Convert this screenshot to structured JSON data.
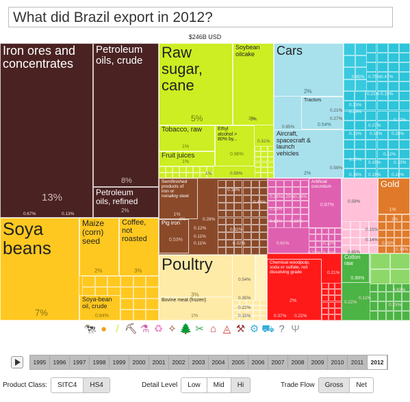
{
  "header": {
    "title": "What did Brazil export in 2012?",
    "total": "$246B USD"
  },
  "tiles": [
    {
      "id": "iron",
      "label": "Iron ores and\nconcentrates",
      "pct": "13%",
      "color": "#4a2222",
      "text": "#ffffff",
      "pctColor": "#cfb9b9",
      "fs": 18,
      "pfs": 15
    },
    {
      "id": "crude",
      "label": "Petroleum\noils, crude",
      "pct": "8%",
      "color": "#4a2222",
      "text": "#ffffff",
      "pctColor": "#cfb9b9",
      "fs": 15,
      "pfs": 11
    },
    {
      "id": "refined",
      "label": "Petroleum\noils, refined",
      "pct": "2%",
      "color": "#4a2222",
      "text": "#ffffff",
      "pctColor": "#cfb9b9",
      "fs": 12,
      "pfs": 8
    },
    {
      "id": "soya",
      "label": "Soya\nbeans",
      "pct": "7%",
      "color": "#ffc820",
      "text": "#222222",
      "pctColor": "#8a6d10",
      "fs": 26,
      "pfs": 13
    },
    {
      "id": "maize",
      "label": "Maize\n(corn)\nseed",
      "pct": "2%",
      "color": "#ffc820",
      "text": "#222222",
      "pctColor": "#8a6d10",
      "fs": 12,
      "pfs": 8
    },
    {
      "id": "coffee",
      "label": "Coffee,\nnot\nroasted",
      "pct": "3%",
      "color": "#ffc820",
      "text": "#222222",
      "pctColor": "#8a6d10",
      "fs": 11,
      "pfs": 8
    },
    {
      "id": "soyoil",
      "label": "Soya-bean\noil, crude",
      "pct": "0.84%",
      "color": "#ffc820",
      "text": "#222222",
      "pctColor": "#8a6d10",
      "fs": 9,
      "pfs": 7
    },
    {
      "id": "sugar",
      "label": "Raw\nsugar,\ncane",
      "pct": "5%",
      "color": "#ccee22",
      "text": "#222222",
      "pctColor": "#6a7d10",
      "fs": 22,
      "pfs": 12
    },
    {
      "id": "oilcake",
      "label": "Soybean\noilcake",
      "pct": "3%",
      "color": "#ccee22",
      "text": "#222222",
      "pctColor": "#6a7d10",
      "fs": 9,
      "pfs": 7
    },
    {
      "id": "tobacco",
      "label": "Tobacco, raw",
      "pct": "1%",
      "color": "#ccee22",
      "text": "#222222",
      "pctColor": "#6a7d10",
      "fs": 10,
      "pfs": 7
    },
    {
      "id": "ethyl",
      "label": "Ethyl\nalcohol >\n80% by...",
      "pct": "0.96%",
      "color": "#ccee22",
      "text": "#222222",
      "pctColor": "#6a7d10",
      "fs": 7,
      "pfs": 7
    },
    {
      "id": "juices",
      "label": "Fruit juices",
      "pct": "1%",
      "color": "#ccee22",
      "text": "#222222",
      "pctColor": "#6a7d10",
      "fs": 10,
      "pfs": 7
    },
    {
      "id": "semifin",
      "label": "Semifinished\nproducts of\niron or\nnonalloy steel",
      "pct": "1%",
      "color": "#8a4a2a",
      "text": "#ffffff",
      "pctColor": "#e6cbbb",
      "fs": 6.5,
      "pfs": 7
    },
    {
      "id": "pigiron",
      "label": "Pig iron",
      "pct": "0.53%",
      "color": "#8a4a2a",
      "text": "#ffffff",
      "pctColor": "#e6cbbb",
      "fs": 8,
      "pfs": 7
    },
    {
      "id": "poultry",
      "label": "Poultry",
      "pct": "3%",
      "color": "#ffeba8",
      "text": "#222222",
      "pctColor": "#8a7a40",
      "fs": 24,
      "pfs": 8
    },
    {
      "id": "bovine",
      "label": "Bovine meat (frozen)",
      "pct": "1%",
      "color": "#ffeba8",
      "text": "#222222",
      "pctColor": "#8a7a40",
      "fs": 7,
      "pfs": 7
    },
    {
      "id": "cars",
      "label": "Cars",
      "pct": "2%",
      "color": "#a8e0ec",
      "text": "#222222",
      "pctColor": "#3d6c78",
      "fs": 18,
      "pfs": 8
    },
    {
      "id": "tractors",
      "label": "Tractors",
      "pct": "0.54%",
      "color": "#a8e0ec",
      "text": "#222222",
      "pctColor": "#3d6c78",
      "fs": 7,
      "pfs": 7
    },
    {
      "id": "aircraft",
      "label": "Aircraft,\nspacecraft &\nlaunch\nvehicles",
      "pct": "2%",
      "color": "#a8e0ec",
      "text": "#222222",
      "pctColor": "#3d6c78",
      "fs": 9,
      "pfs": 7
    },
    {
      "id": "chemical",
      "label": "Chemical woodpulp,\nsoda or sulfate, not\ndissolving grade",
      "pct": "2%",
      "color": "#ff1a1a",
      "text": "#ffffff",
      "pctColor": "#ffd0d0",
      "fs": 6.5,
      "pfs": 7
    },
    {
      "id": "corundum",
      "label": "Artificial\ncorundum",
      "pct": "0.87%",
      "color": "#e060b0",
      "text": "#ffffff",
      "pctColor": "#ffe0f0",
      "fs": 6.5,
      "pfs": 7
    },
    {
      "id": "cotton",
      "label": "Cotton\nraw",
      "pct": "0.88%",
      "color": "#4cb444",
      "text": "#ffffff",
      "pctColor": "#e0ffe0",
      "fs": 8,
      "pfs": 7
    },
    {
      "id": "gold",
      "label": "Gold",
      "pct": "1%",
      "color": "#e07a2a",
      "text": "#ffffff",
      "pctColor": "#ffe0c0",
      "fs": 13,
      "pfs": 7
    }
  ],
  "fill_labels": {
    "cyan": [
      "0.95%",
      "0.75%",
      "0.47%",
      "0.21%",
      "0.19%",
      "0.33%",
      "0.29%",
      "0.13%",
      "0.27%",
      "0.16%",
      "0.37%",
      "0.15%",
      "0.19%",
      "0.19%",
      "0.16%",
      "0.28%",
      "0.13%",
      "0.12%",
      "0.12%"
    ],
    "tractorsExtra": [
      "0.21%",
      "0.27%",
      "0.85%",
      "0.59%"
    ],
    "sugarExtra": [
      "3%",
      "0.31%",
      "0.59%",
      "1%"
    ],
    "brownExtra": [
      "0.16%",
      "0.44%",
      "0.28%",
      "0.32%",
      "0.12%",
      "0.11%",
      "2%",
      "0.32%",
      "0.11%"
    ],
    "pinkExtra": [
      "0.28%",
      "0.25%",
      "0.24%",
      "0.22%",
      "0.16%",
      "0.22%",
      "0.61%",
      "0.12%",
      "0.11%",
      "0.11%"
    ],
    "poultryExtra": [
      "0.54%",
      "0.35%",
      "0.22%",
      "0.15%"
    ],
    "redExtra": [
      "0.21%",
      "0.37%",
      "0.22%"
    ],
    "lightPinkExtra": [
      "0.59%",
      "0.16%",
      "0.14%",
      "0.65%"
    ],
    "orangeExtra": [
      "1%",
      "0.29%",
      "0.14%"
    ],
    "greenExtra": [
      "0.83%",
      "0.23%",
      "0.22%",
      "0.12%"
    ],
    "iron": [
      "0.67%",
      "0.13%"
    ]
  },
  "icons": [
    {
      "name": "animal-icon",
      "glyph": "🐄",
      "color": "#ffeba8"
    },
    {
      "name": "vegetable-icon",
      "glyph": "●",
      "color": "#f0a020"
    },
    {
      "name": "foodstuff-icon",
      "glyph": "/",
      "color": "#ccee22"
    },
    {
      "name": "mineral-icon",
      "glyph": "⛏",
      "color": "#4a2222"
    },
    {
      "name": "chemical-icon",
      "glyph": "⚗",
      "color": "#cc66aa"
    },
    {
      "name": "plastic-icon",
      "glyph": "♻",
      "color": "#ee88cc"
    },
    {
      "name": "animal-hide-icon",
      "glyph": "✧",
      "color": "#8a4a2a"
    },
    {
      "name": "wood-icon",
      "glyph": "🌲",
      "color": "#77aa33"
    },
    {
      "name": "textile-icon",
      "glyph": "✂",
      "color": "#33aa55"
    },
    {
      "name": "footwear-icon",
      "glyph": "⌂",
      "color": "#d04040"
    },
    {
      "name": "stone-icon",
      "glyph": "◬",
      "color": "#cc3333"
    },
    {
      "name": "metal-icon",
      "glyph": "⚒",
      "color": "#9b3a3a"
    },
    {
      "name": "machine-icon",
      "glyph": "⚙",
      "color": "#3aaed8"
    },
    {
      "name": "transport-icon",
      "glyph": "⛟",
      "color": "#3aaed8"
    },
    {
      "name": "misc-icon",
      "glyph": "?",
      "color": "#777777"
    },
    {
      "name": "unknown-icon",
      "glyph": "Ψ",
      "color": "#999999"
    }
  ],
  "timeline": {
    "years": [
      "1995",
      "1996",
      "1997",
      "1998",
      "1999",
      "2000",
      "2001",
      "2002",
      "2003",
      "2004",
      "2005",
      "2006",
      "2007",
      "2008",
      "2009",
      "2010",
      "2011",
      "2012"
    ],
    "selected": "2012"
  },
  "controls": {
    "product_class": {
      "label": "Product Class:",
      "options": [
        "SITC4",
        "HS4"
      ],
      "selected": "HS4"
    },
    "detail_level": {
      "label": "Detail Level",
      "options": [
        "Low",
        "Mid",
        "Hi"
      ],
      "selected": "Hi"
    },
    "trade_flow": {
      "label": "Trade Flow",
      "options": [
        "Gross",
        "Net"
      ],
      "selected": "Gross"
    }
  }
}
